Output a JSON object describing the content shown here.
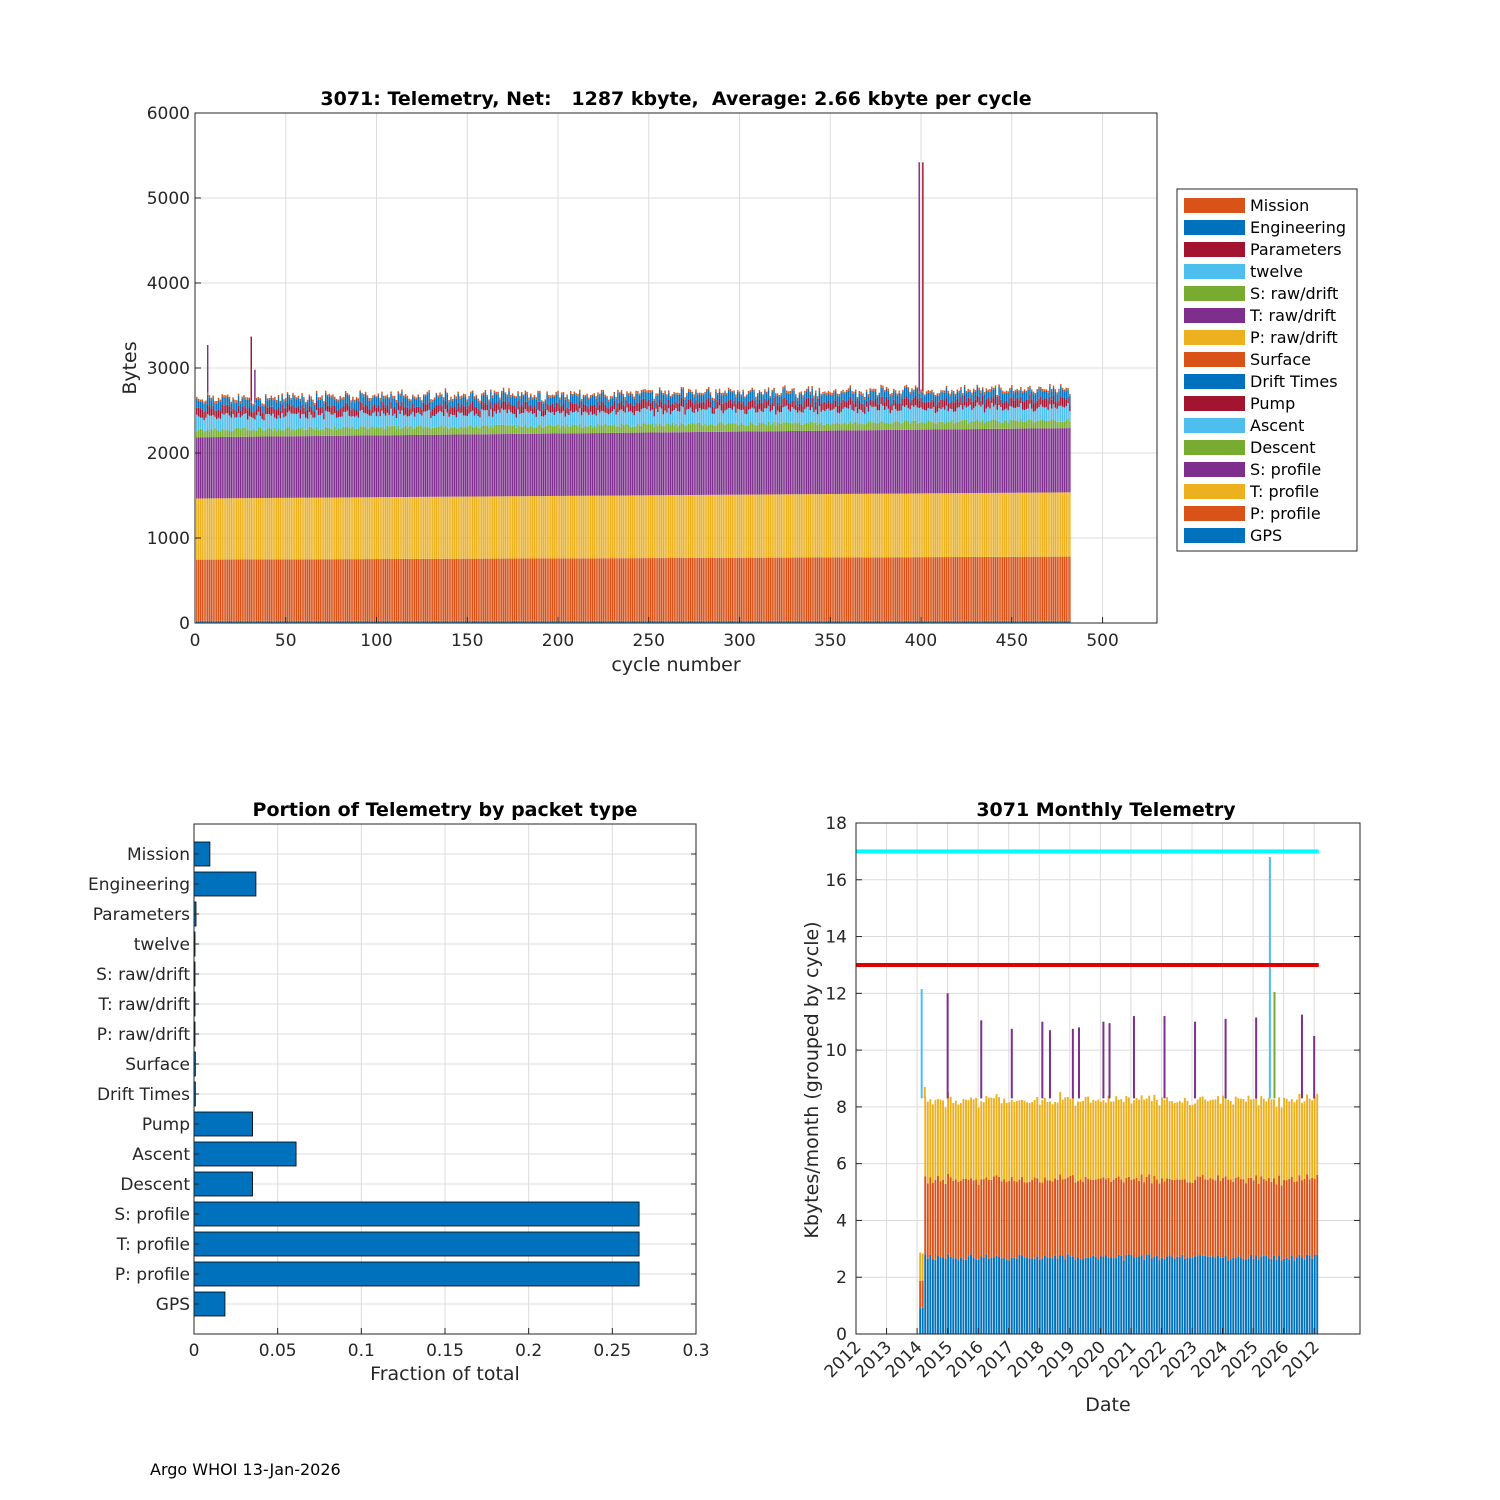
{
  "footer": "Argo WHOI 13-Jan-2026",
  "colors": {
    "blue": "#0072BD",
    "orange": "#D95319",
    "yellow": "#EDB120",
    "purple": "#7E2F8E",
    "green": "#77AC30",
    "cyan": "#4DBEEE",
    "darkred": "#A2142F",
    "grid": "#dcdcdc",
    "axis": "#262626",
    "red_line": "#E00000",
    "cyan_line": "#00FFFF"
  },
  "chart_data": [
    {
      "id": "cycle",
      "type": "bar",
      "stacked": true,
      "title": "3071: Telemetry, Net:   1287 kbyte,  Average: 2.66 kbyte per cycle",
      "xlabel": "cycle number",
      "ylabel": "Bytes",
      "xlim": [
        0,
        530
      ],
      "ylim": [
        0,
        6000
      ],
      "xticks": [
        0,
        50,
        100,
        150,
        200,
        250,
        300,
        350,
        400,
        450,
        500
      ],
      "yticks": [
        0,
        1000,
        2000,
        3000,
        4000,
        5000,
        6000
      ],
      "grid": true,
      "legend_position": "outside-right",
      "cycles": [
        1,
        482
      ],
      "legend": [
        "Mission",
        "Engineering",
        "Parameters",
        "twelve",
        "S: raw/drift",
        "T: raw/drift",
        "P: raw/drift",
        "Surface",
        "Drift Times",
        "Pump",
        "Ascent",
        "Descent",
        "S: profile",
        "T: profile",
        "P: profile",
        "GPS"
      ],
      "legend_colors": [
        "#D95319",
        "#0072BD",
        "#A2142F",
        "#4DBEEE",
        "#77AC30",
        "#7E2F8E",
        "#EDB120",
        "#D95319",
        "#0072BD",
        "#A2142F",
        "#4DBEEE",
        "#77AC30",
        "#7E2F8E",
        "#EDB120",
        "#D95319",
        "#0072BD"
      ],
      "typical_stack_bytes": [
        {
          "name": "GPS",
          "value": 25,
          "color": "#0072BD"
        },
        {
          "name": "P: profile",
          "value": 720,
          "color": "#D95319"
        },
        {
          "name": "T: profile",
          "value": 720,
          "color": "#EDB120"
        },
        {
          "name": "S: profile",
          "value": 720,
          "color": "#7E2F8E"
        },
        {
          "name": "Descent",
          "value": 90,
          "color": "#77AC30"
        },
        {
          "name": "Ascent",
          "value": 160,
          "color": "#4DBEEE"
        },
        {
          "name": "Pump",
          "value": 90,
          "color": "#A2142F"
        },
        {
          "name": "Engineering",
          "value": 100,
          "color": "#0072BD"
        },
        {
          "name": "Mission",
          "value": 25,
          "color": "#D95319"
        }
      ],
      "spikes": [
        {
          "cycle": 7,
          "total": 3270,
          "color": "#7E2F8E"
        },
        {
          "cycle": 31,
          "total": 3370,
          "color": "#A2142F"
        },
        {
          "cycle": 33,
          "total": 2980,
          "color": "#7E2F8E"
        },
        {
          "cycle": 399,
          "total": 5420,
          "color": "#7E2F8E"
        },
        {
          "cycle": 401,
          "total": 5420,
          "color": "#A2142F"
        }
      ]
    },
    {
      "id": "portion",
      "type": "barh",
      "title": "Portion of Telemetry by packet type",
      "xlabel": "Fraction of total",
      "xlim": [
        0,
        0.3
      ],
      "xticks": [
        0,
        0.05,
        0.1,
        0.15,
        0.2,
        0.25,
        0.3
      ],
      "xtick_labels": [
        "0",
        "0.05",
        "0.1",
        "0.15",
        "0.2",
        "0.25",
        "0.3"
      ],
      "categories": [
        "Mission",
        "Engineering",
        "Parameters",
        "twelve",
        "S: raw/drift",
        "T: raw/drift",
        "P: raw/drift",
        "Surface",
        "Drift Times",
        "Pump",
        "Ascent",
        "Descent",
        "S: profile",
        "T: profile",
        "P: profile",
        "GPS"
      ],
      "values": [
        0.0095,
        0.037,
        0.0012,
        0.0006,
        0.0006,
        0.0006,
        0.0006,
        0.0008,
        0.0008,
        0.035,
        0.061,
        0.035,
        0.266,
        0.266,
        0.266,
        0.0185
      ],
      "color": "#0072BD",
      "grid": true
    },
    {
      "id": "monthly",
      "type": "bar",
      "stacked": true,
      "title": "3071 Monthly Telemetry",
      "xlabel": "Date",
      "ylabel": "Kbytes/month (grouped by cycle)",
      "xlim": [
        2011.0,
        2027.5
      ],
      "ylim": [
        0,
        18
      ],
      "yticks": [
        0,
        2,
        4,
        6,
        8,
        10,
        12,
        14,
        16,
        18
      ],
      "xtick_labels": [
        "2012",
        "2013",
        "2014",
        "2015",
        "2016",
        "2017",
        "2018",
        "2019",
        "2020",
        "2021",
        "2022",
        "2023",
        "2024",
        "2025",
        "2026",
        "2012"
      ],
      "grid": true,
      "hlines": [
        {
          "y": 17,
          "color": "#00FFFF",
          "x0": 2011.0,
          "x1": 2026.15
        },
        {
          "y": 13,
          "color": "#E00000",
          "x0": 2011.0,
          "x1": 2026.15
        }
      ],
      "month_range": [
        2013.1,
        2026.15
      ],
      "typical_segments": [
        {
          "name": "blue",
          "value": 2.7,
          "color": "#0072BD"
        },
        {
          "name": "orange",
          "value": 2.75,
          "color": "#D95319"
        },
        {
          "name": "yellow",
          "value": 2.8,
          "color": "#EDB120"
        }
      ],
      "spikes": [
        {
          "x": 2013.15,
          "top": 12.15,
          "color": "#4DBEEE"
        },
        {
          "x": 2013.25,
          "top": 8.7,
          "color": "#EDB120"
        },
        {
          "x": 2014.0,
          "top": 12.0,
          "color": "#7E2F8E"
        },
        {
          "x": 2015.1,
          "top": 11.05,
          "color": "#7E2F8E"
        },
        {
          "x": 2016.1,
          "top": 10.75,
          "color": "#7E2F8E"
        },
        {
          "x": 2017.1,
          "top": 11.0,
          "color": "#7E2F8E"
        },
        {
          "x": 2017.35,
          "top": 10.7,
          "color": "#7E2F8E"
        },
        {
          "x": 2018.1,
          "top": 10.75,
          "color": "#7E2F8E"
        },
        {
          "x": 2018.3,
          "top": 10.8,
          "color": "#7E2F8E"
        },
        {
          "x": 2019.1,
          "top": 11.0,
          "color": "#7E2F8E"
        },
        {
          "x": 2019.3,
          "top": 10.95,
          "color": "#7E2F8E"
        },
        {
          "x": 2020.1,
          "top": 11.2,
          "color": "#7E2F8E"
        },
        {
          "x": 2021.1,
          "top": 11.2,
          "color": "#7E2F8E"
        },
        {
          "x": 2022.1,
          "top": 11.0,
          "color": "#7E2F8E"
        },
        {
          "x": 2023.1,
          "top": 11.1,
          "color": "#7E2F8E"
        },
        {
          "x": 2024.1,
          "top": 11.15,
          "color": "#7E2F8E"
        },
        {
          "x": 2024.55,
          "top": 16.8,
          "color": "#4DBEEE"
        },
        {
          "x": 2024.7,
          "top": 12.05,
          "color": "#77AC30"
        },
        {
          "x": 2025.6,
          "top": 11.25,
          "color": "#7E2F8E"
        },
        {
          "x": 2026.0,
          "top": 10.5,
          "color": "#7E2F8E"
        }
      ]
    }
  ]
}
